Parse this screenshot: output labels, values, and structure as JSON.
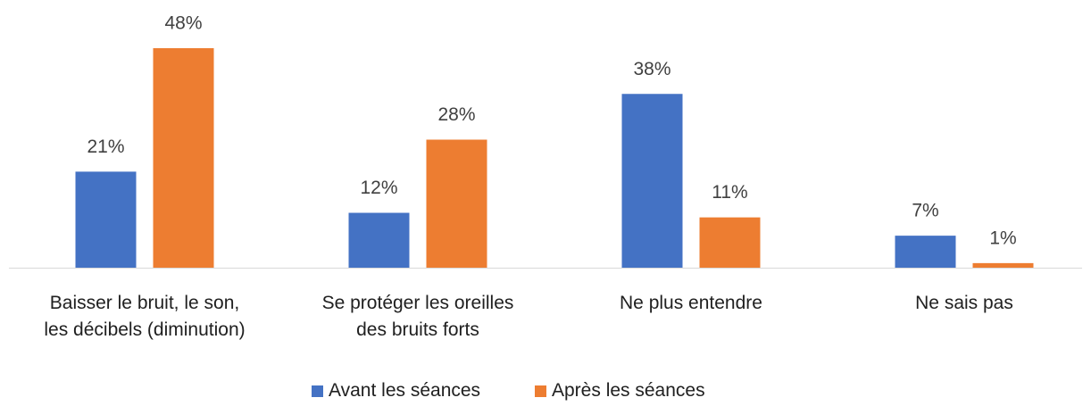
{
  "chart_data": {
    "type": "bar",
    "categories": [
      "Baisser le bruit, le son,\nles décibels (diminution)",
      "Se protéger les oreilles\ndes bruits forts",
      "Ne plus entendre",
      "Ne sais pas"
    ],
    "series": [
      {
        "name": "Avant les séances",
        "color": "#4472c4",
        "values": [
          21,
          12,
          38,
          7
        ],
        "value_labels": [
          "21%",
          "12%",
          "38%",
          "7%"
        ]
      },
      {
        "name": "Après les séances",
        "color": "#ed7d31",
        "values": [
          48,
          28,
          11,
          1
        ],
        "value_labels": [
          "48%",
          "28%",
          "11%",
          "1%"
        ]
      }
    ],
    "legend": "bottom"
  }
}
